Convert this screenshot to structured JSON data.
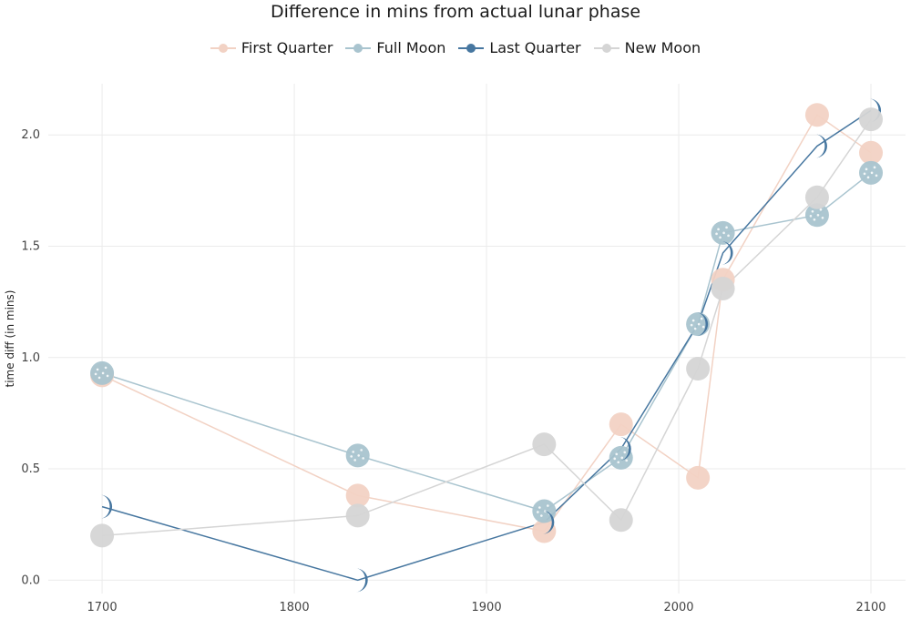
{
  "chart_data": {
    "type": "line",
    "title": "Difference in mins from actual lunar phase",
    "xlabel": "",
    "ylabel": "time diff (in mins)",
    "xlim": [
      1672,
      2118
    ],
    "ylim": [
      -0.06,
      2.23
    ],
    "x_ticks": [
      1700,
      1800,
      1900,
      2000,
      2100
    ],
    "y_ticks": [
      0.0,
      0.5,
      1.0,
      1.5,
      2.0
    ],
    "x_tick_labels": [
      "1700",
      "1800",
      "1900",
      "2000",
      "2100"
    ],
    "y_tick_labels": [
      "0.0",
      "0.5",
      "1.0",
      "1.5",
      "2.0"
    ],
    "grid": true,
    "legend_position": "top-center",
    "series": [
      {
        "name": "First Quarter",
        "color": "#f2d2c4",
        "marker": "circle",
        "x": [
          1700,
          1833,
          1930,
          1970,
          2010,
          2023,
          2072,
          2100
        ],
        "y": [
          0.92,
          0.38,
          0.22,
          0.7,
          0.46,
          1.35,
          2.09,
          1.92
        ]
      },
      {
        "name": "Full Moon",
        "color": "#a9c4cf",
        "marker": "speckled-circle",
        "x": [
          1700,
          1833,
          1930,
          1970,
          2010,
          2023,
          2072,
          2100
        ],
        "y": [
          0.93,
          0.56,
          0.31,
          0.55,
          1.15,
          1.56,
          1.64,
          1.83
        ]
      },
      {
        "name": "Last Quarter",
        "color": "#4777a0",
        "marker": "crescent",
        "x": [
          1700,
          1833,
          1930,
          1970,
          2010,
          2023,
          2072,
          2100
        ],
        "y": [
          0.33,
          0.0,
          0.26,
          0.59,
          1.15,
          1.47,
          1.95,
          2.11
        ]
      },
      {
        "name": "New Moon",
        "color": "#d5d5d5",
        "marker": "circle",
        "x": [
          1700,
          1833,
          1930,
          1970,
          2010,
          2023,
          2072,
          2100
        ],
        "y": [
          0.2,
          0.29,
          0.61,
          0.27,
          0.95,
          1.31,
          1.72,
          2.07
        ]
      }
    ]
  }
}
